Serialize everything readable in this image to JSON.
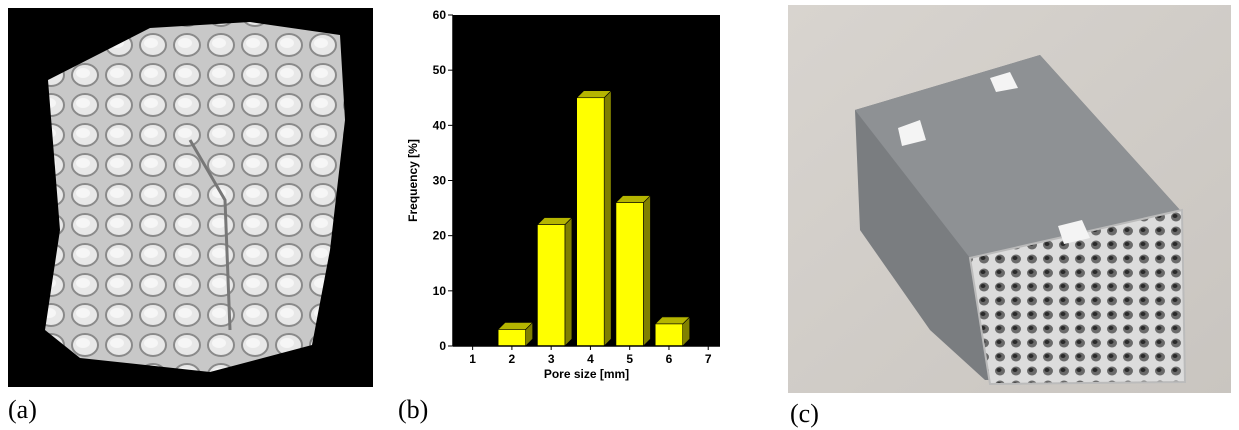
{
  "panel_labels": [
    "(a)",
    "(b)",
    "(c)"
  ],
  "chart_data": {
    "type": "bar",
    "xlabel": "Pore size [mm]",
    "ylabel": "Frequency [%]",
    "x": [
      2,
      3,
      4,
      5,
      6
    ],
    "values": [
      3,
      22,
      45,
      26,
      4
    ],
    "color": "#ffff00",
    "xlim": [
      0.5,
      7.3
    ],
    "xticks": [
      1,
      2,
      3,
      4,
      5,
      6,
      7
    ],
    "ylim": [
      0,
      60
    ],
    "yticks": [
      0,
      10,
      20,
      30,
      40,
      50,
      60
    ]
  }
}
